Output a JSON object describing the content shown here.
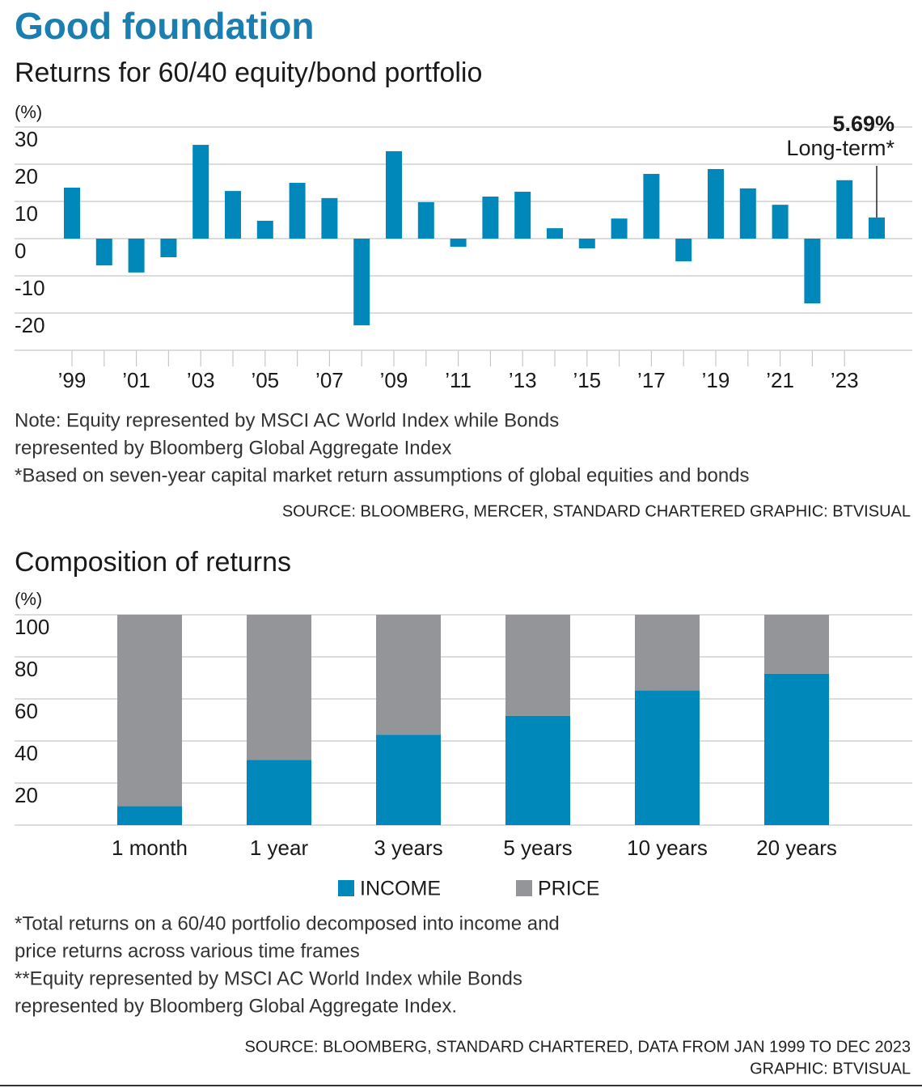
{
  "title": "Good foundation",
  "chart_data": [
    {
      "type": "bar",
      "title": "Returns for 60/40 equity/bond portfolio",
      "y_label": "(%)",
      "categories": [
        "’99",
        null,
        "’01",
        null,
        "’03",
        null,
        "’05",
        null,
        "’07",
        null,
        "’09",
        null,
        "’11",
        null,
        "’13",
        null,
        "’15",
        null,
        "’17",
        null,
        "’19",
        null,
        "’21",
        null,
        "’23",
        null
      ],
      "values": [
        13.7,
        -7.2,
        -9.1,
        -5.0,
        25.2,
        12.8,
        4.8,
        15.0,
        10.9,
        -23.3,
        23.5,
        9.8,
        -2.2,
        11.3,
        12.6,
        2.8,
        -2.6,
        5.4,
        17.4,
        -6.1,
        18.7,
        13.5,
        9.1,
        -17.4,
        15.7,
        5.69
      ],
      "value_labels": [
        null,
        null,
        null,
        null,
        null,
        null,
        null,
        null,
        null,
        null,
        null,
        null,
        null,
        null,
        null,
        null,
        null,
        null,
        null,
        null,
        null,
        null,
        null,
        null,
        null,
        "5.69%"
      ],
      "annotation": "Long-term*",
      "color": "#0088bb",
      "ylim": [
        -30,
        30
      ],
      "yticks": [
        30,
        20,
        10,
        0,
        -10,
        -20
      ],
      "grid": true,
      "notes": [
        "Note: Equity represented by MSCI AC World Index while Bonds",
        "represented by Bloomberg Global Aggregate Index",
        "*Based on seven-year capital market return assumptions of global equities and bonds"
      ],
      "source": [
        "SOURCE: BLOOMBERG, MERCER, STANDARD CHARTERED   GRAPHIC: BTVISUAL"
      ]
    },
    {
      "type": "stacked_bar",
      "title": "Composition of returns",
      "y_label": "(%)",
      "categories": [
        "1 month",
        "1 year",
        "3 years",
        "5 years",
        "10 years",
        "20 years"
      ],
      "series": [
        {
          "name": "INCOME",
          "color": "#0088bb",
          "values": [
            9,
            31,
            43,
            52,
            64,
            72
          ]
        },
        {
          "name": "PRICE",
          "color": "#939598",
          "values": [
            91,
            69,
            57,
            48,
            36,
            28
          ]
        }
      ],
      "ylim": [
        0,
        100
      ],
      "yticks": [
        20,
        40,
        60,
        80,
        100
      ],
      "grid": true,
      "notes": [
        "*Total returns on a 60/40 portfolio decomposed into income and",
        "price returns across various time frames",
        "**Equity represented by MSCI AC World Index while Bonds",
        "represented by Bloomberg Global Aggregate Index."
      ],
      "source": [
        "SOURCE: BLOOMBERG, STANDARD CHARTERED, DATA FROM JAN 1999 TO DEC 2023",
        "GRAPHIC: BTVISUAL"
      ]
    }
  ]
}
